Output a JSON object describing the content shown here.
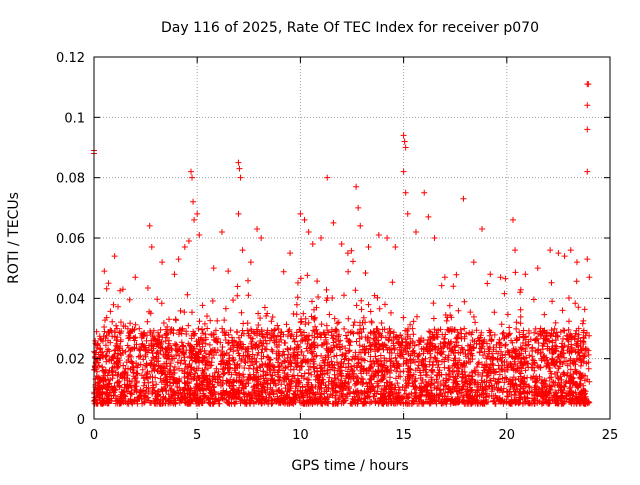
{
  "chart_data": {
    "type": "scatter",
    "title": "Day 116 of 2025, Rate Of TEC Index for receiver p070",
    "xlabel": "GPS time / hours",
    "ylabel": "ROTI / TECUs",
    "xlim": [
      0,
      25
    ],
    "ylim": [
      0,
      0.12
    ],
    "x_ticks": [
      0,
      5,
      10,
      15,
      20,
      25
    ],
    "x_tick_labels": [
      "0",
      "5",
      "10",
      "15",
      "20",
      "25"
    ],
    "y_ticks": [
      0,
      0.02,
      0.04,
      0.06,
      0.08,
      0.1,
      0.12
    ],
    "y_tick_labels": [
      "0",
      "0.02",
      "0.04",
      "0.06",
      "0.08",
      "0.1",
      "0.12"
    ],
    "grid": true,
    "legend": "none",
    "marker": "plus",
    "marker_color": "#ff0000",
    "dense_band": {
      "x_range": [
        0,
        24
      ],
      "y_range": [
        0.005,
        0.03
      ],
      "note_values": "dense cloud of several thousand points concentrated between ROTI 0.005 and 0.03 TECUs over the full day"
    },
    "series": [
      {
        "values": [
          {
            "x": 0.0,
            "y": 0.089
          },
          {
            "x": 0.0,
            "y": 0.088
          },
          {
            "x": 0.5,
            "y": 0.049
          },
          {
            "x": 0.7,
            "y": 0.045
          },
          {
            "x": 1.0,
            "y": 0.054
          },
          {
            "x": 1.4,
            "y": 0.043
          },
          {
            "x": 2.0,
            "y": 0.047
          },
          {
            "x": 2.7,
            "y": 0.064
          },
          {
            "x": 2.8,
            "y": 0.057
          },
          {
            "x": 3.3,
            "y": 0.052
          },
          {
            "x": 3.9,
            "y": 0.048
          },
          {
            "x": 4.1,
            "y": 0.053
          },
          {
            "x": 4.4,
            "y": 0.057
          },
          {
            "x": 4.6,
            "y": 0.059
          },
          {
            "x": 4.7,
            "y": 0.082
          },
          {
            "x": 4.75,
            "y": 0.08
          },
          {
            "x": 4.8,
            "y": 0.072
          },
          {
            "x": 4.85,
            "y": 0.066
          },
          {
            "x": 5.0,
            "y": 0.068
          },
          {
            "x": 5.1,
            "y": 0.061
          },
          {
            "x": 5.8,
            "y": 0.05
          },
          {
            "x": 6.2,
            "y": 0.062
          },
          {
            "x": 6.5,
            "y": 0.049
          },
          {
            "x": 7.0,
            "y": 0.085
          },
          {
            "x": 7.05,
            "y": 0.083
          },
          {
            "x": 7.1,
            "y": 0.08
          },
          {
            "x": 7.0,
            "y": 0.068
          },
          {
            "x": 7.2,
            "y": 0.056
          },
          {
            "x": 7.6,
            "y": 0.052
          },
          {
            "x": 7.9,
            "y": 0.063
          },
          {
            "x": 8.1,
            "y": 0.06
          },
          {
            "x": 9.5,
            "y": 0.055
          },
          {
            "x": 10.0,
            "y": 0.068
          },
          {
            "x": 10.2,
            "y": 0.066
          },
          {
            "x": 10.4,
            "y": 0.062
          },
          {
            "x": 10.6,
            "y": 0.058
          },
          {
            "x": 11.0,
            "y": 0.06
          },
          {
            "x": 11.3,
            "y": 0.08
          },
          {
            "x": 11.6,
            "y": 0.065
          },
          {
            "x": 12.0,
            "y": 0.058
          },
          {
            "x": 12.3,
            "y": 0.055
          },
          {
            "x": 12.7,
            "y": 0.077
          },
          {
            "x": 12.8,
            "y": 0.07
          },
          {
            "x": 12.9,
            "y": 0.064
          },
          {
            "x": 13.3,
            "y": 0.057
          },
          {
            "x": 13.8,
            "y": 0.061
          },
          {
            "x": 14.2,
            "y": 0.06
          },
          {
            "x": 14.6,
            "y": 0.057
          },
          {
            "x": 15.0,
            "y": 0.094
          },
          {
            "x": 15.05,
            "y": 0.092
          },
          {
            "x": 15.1,
            "y": 0.09
          },
          {
            "x": 15.0,
            "y": 0.082
          },
          {
            "x": 15.1,
            "y": 0.075
          },
          {
            "x": 15.2,
            "y": 0.068
          },
          {
            "x": 15.6,
            "y": 0.062
          },
          {
            "x": 16.0,
            "y": 0.075
          },
          {
            "x": 16.2,
            "y": 0.067
          },
          {
            "x": 16.5,
            "y": 0.06
          },
          {
            "x": 17.0,
            "y": 0.047
          },
          {
            "x": 17.9,
            "y": 0.073
          },
          {
            "x": 18.4,
            "y": 0.052
          },
          {
            "x": 18.8,
            "y": 0.063
          },
          {
            "x": 19.2,
            "y": 0.048
          },
          {
            "x": 19.7,
            "y": 0.047
          },
          {
            "x": 20.3,
            "y": 0.066
          },
          {
            "x": 20.4,
            "y": 0.056
          },
          {
            "x": 20.9,
            "y": 0.048
          },
          {
            "x": 21.5,
            "y": 0.05
          },
          {
            "x": 22.1,
            "y": 0.056
          },
          {
            "x": 22.5,
            "y": 0.055
          },
          {
            "x": 22.8,
            "y": 0.054
          },
          {
            "x": 23.1,
            "y": 0.056
          },
          {
            "x": 23.4,
            "y": 0.052
          },
          {
            "x": 23.9,
            "y": 0.111
          },
          {
            "x": 23.95,
            "y": 0.111
          },
          {
            "x": 23.9,
            "y": 0.104
          },
          {
            "x": 23.9,
            "y": 0.096
          },
          {
            "x": 23.9,
            "y": 0.082
          },
          {
            "x": 23.9,
            "y": 0.053
          },
          {
            "x": 24.0,
            "y": 0.047
          }
        ]
      }
    ]
  }
}
